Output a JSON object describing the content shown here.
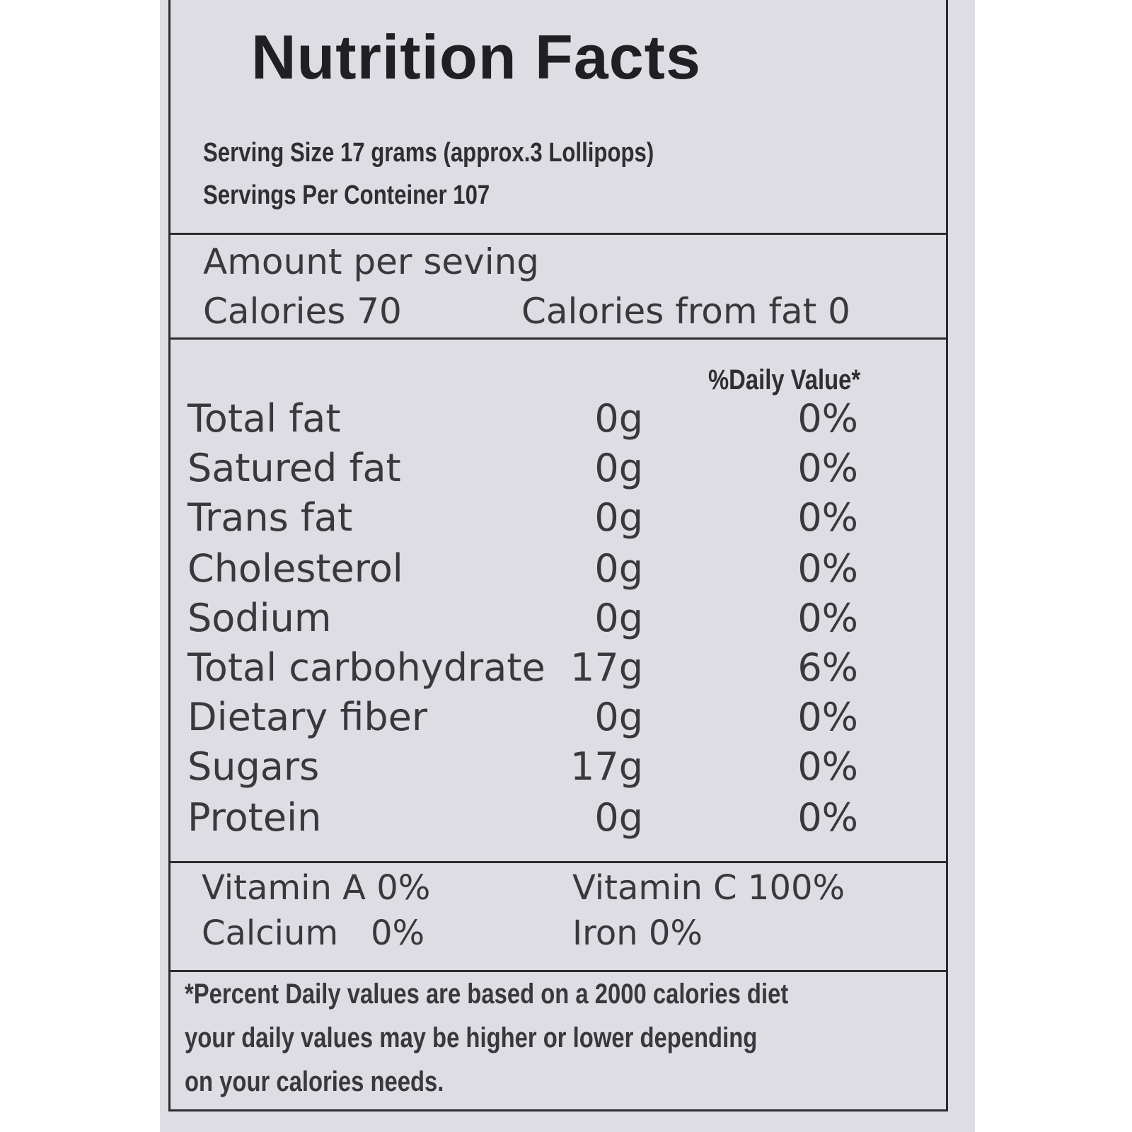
{
  "label": {
    "title": "Nutrition Facts",
    "serving_size": "Serving Size 17 grams (approx.3 Lollipops)",
    "servings_per_container": "Servings Per Conteiner 107",
    "amount_per_serving": "Amount per seving",
    "calories": "Calories 70",
    "calories_from_fat": "Calories from fat 0",
    "daily_value_header": "%Daily Value*",
    "nutrients": [
      {
        "name": "Total fat",
        "amount": "0g",
        "daily_value": "0%"
      },
      {
        "name": "Satured fat",
        "amount": "0g",
        "daily_value": "0%"
      },
      {
        "name": "Trans fat",
        "amount": "0g",
        "daily_value": "0%"
      },
      {
        "name": "Cholesterol",
        "amount": "0g",
        "daily_value": "0%"
      },
      {
        "name": "Sodium",
        "amount": "0g",
        "daily_value": "0%"
      },
      {
        "name": "Total carbohydrate",
        "amount": "17g",
        "daily_value": "6%"
      },
      {
        "name": "Dietary fiber",
        "amount": "0g",
        "daily_value": "0%"
      },
      {
        "name": "Sugars",
        "amount": "17g",
        "daily_value": "0%"
      },
      {
        "name": "Protein",
        "amount": "0g",
        "daily_value": "0%"
      }
    ],
    "vitamins": {
      "vitamin_a": "Vitamin A 0%",
      "vitamin_c": "Vitamin C 100%",
      "calcium": "Calcium   0%",
      "iron": "Iron 0%"
    },
    "footnote": [
      "*Percent Daily values are based on a 2000 calories diet",
      "your daily values may be higher or lower depending",
      "on your calories needs."
    ]
  },
  "colors": {
    "label_background": "#dedde3",
    "text": "#38383d",
    "rules": "#2b2b30"
  }
}
